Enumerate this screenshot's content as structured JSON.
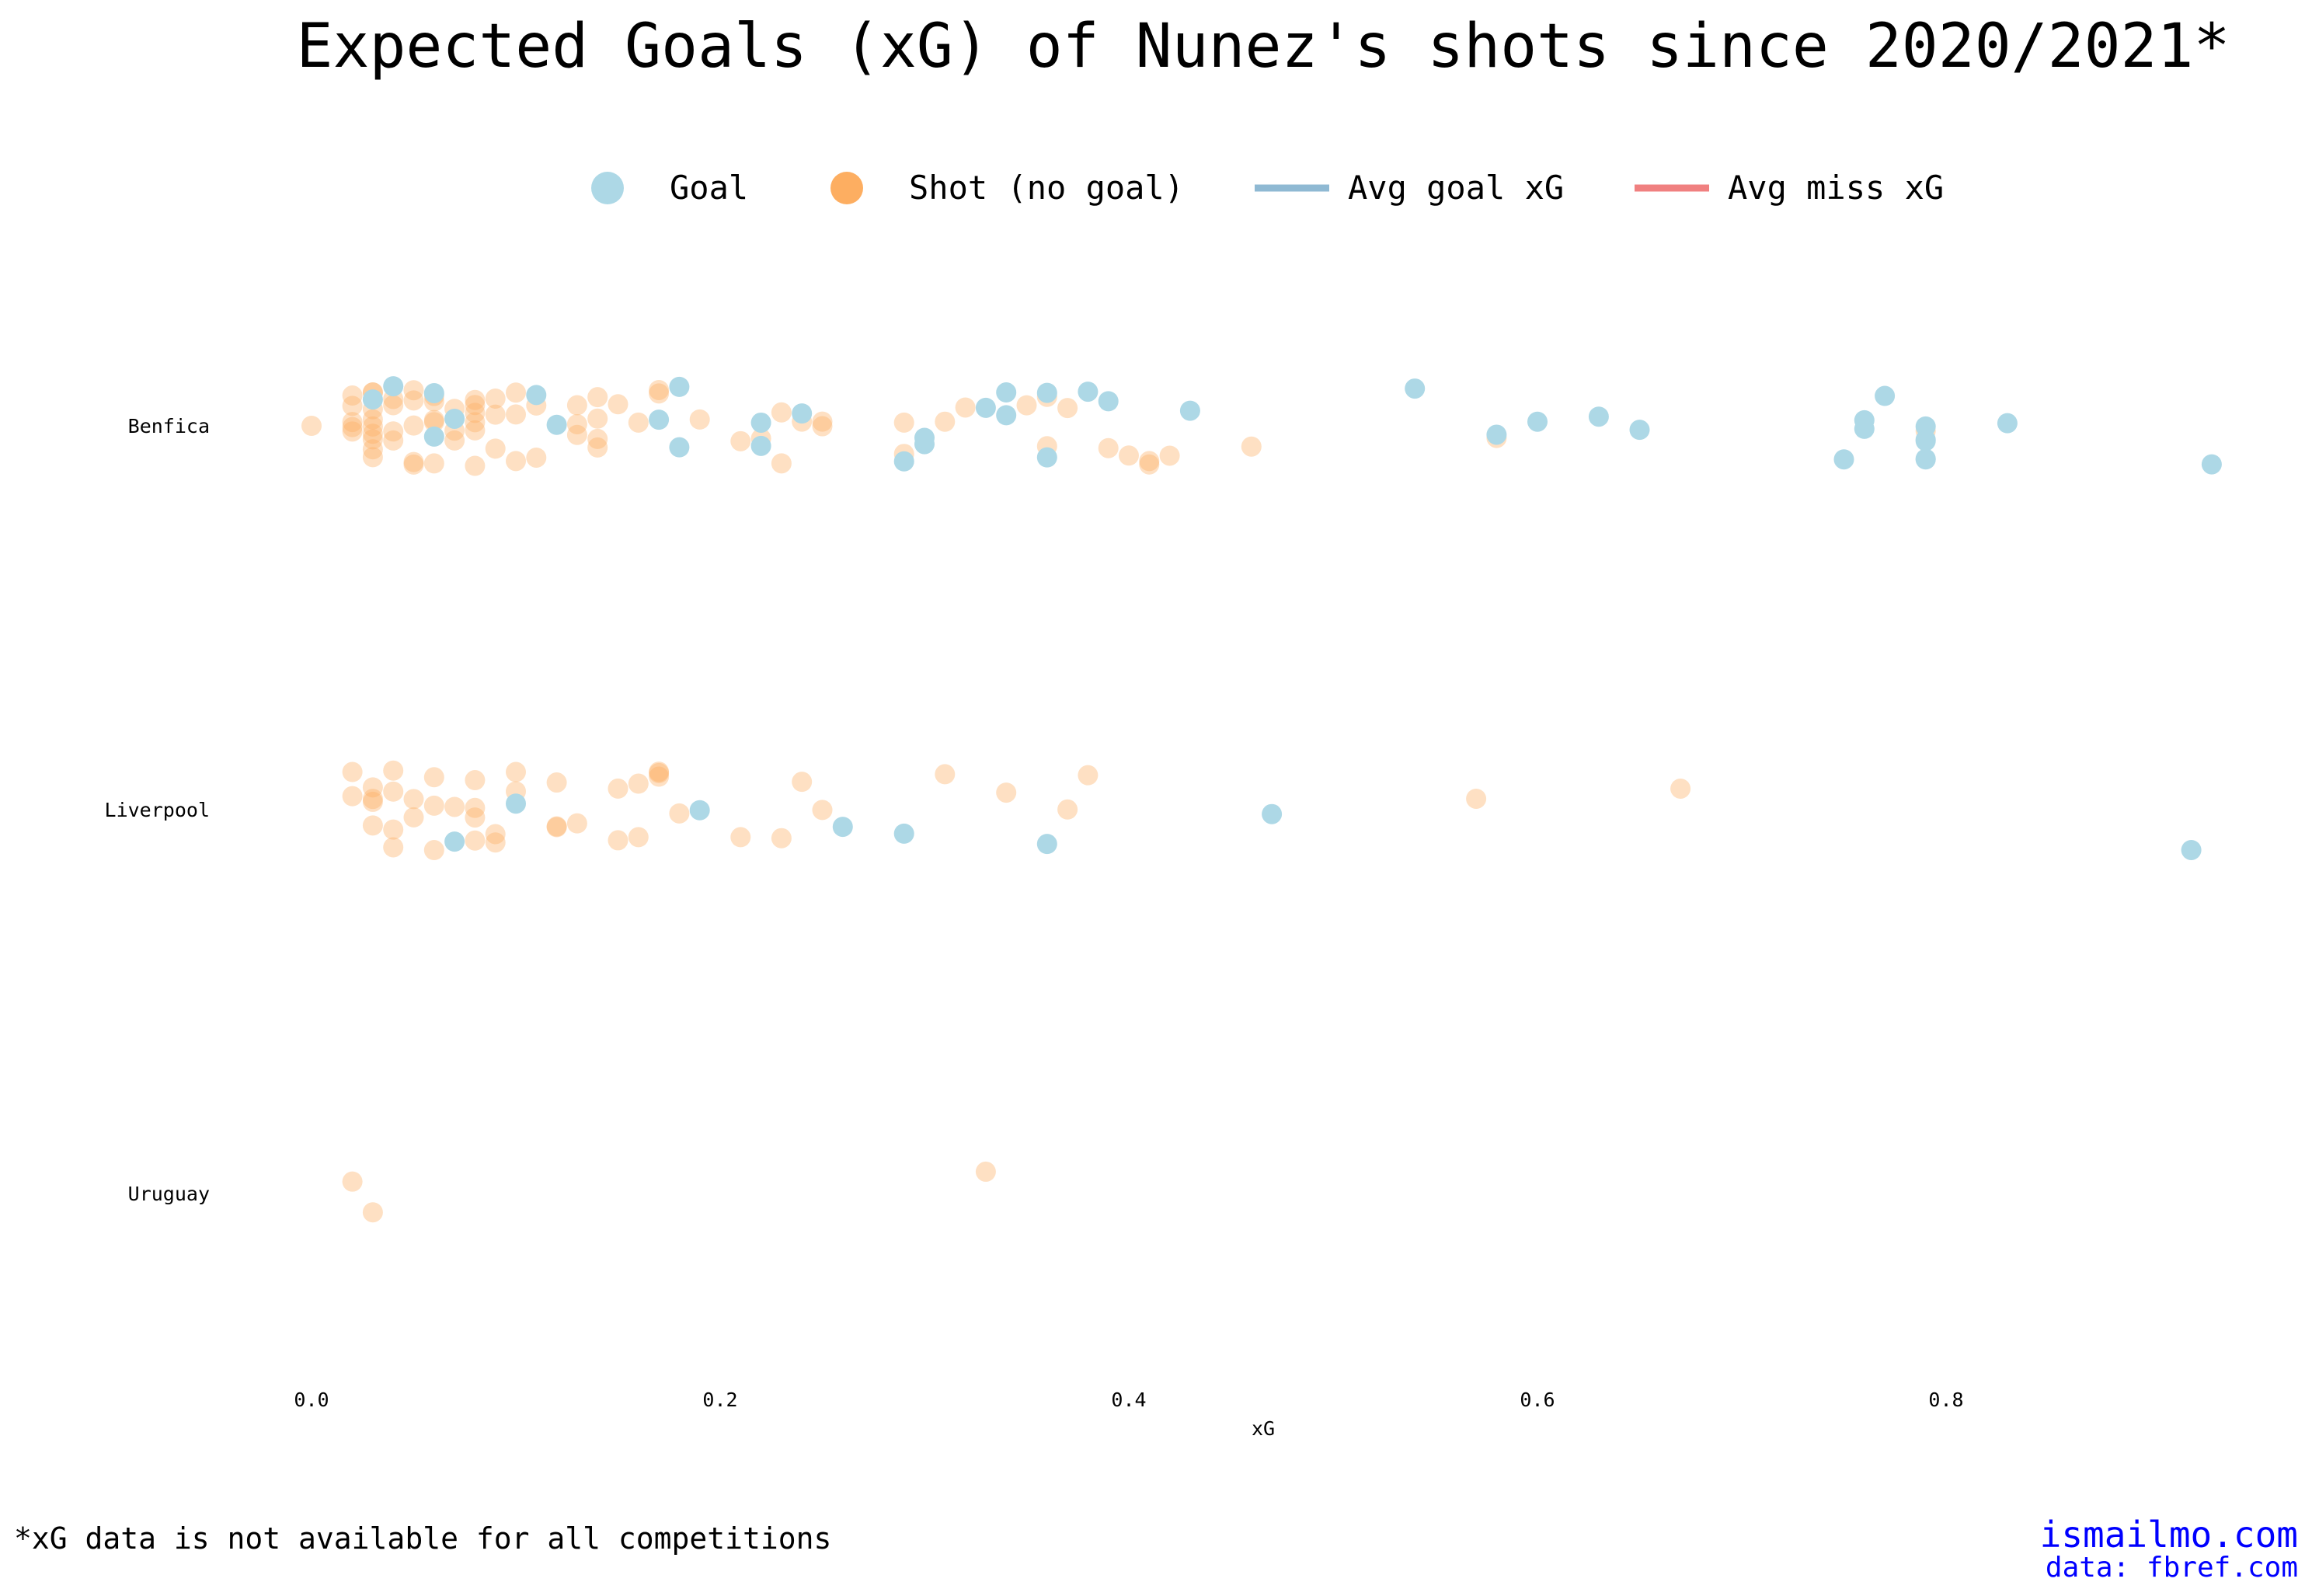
{
  "chart_data": {
    "type": "scatter",
    "title": "Expected Goals (xG) of Nunez's shots since 2020/2021*",
    "xlabel": "xG",
    "ylabel": "",
    "xlim": [
      0.0,
      0.93
    ],
    "xticks": [
      "0.0",
      "0.2",
      "0.4",
      "0.6",
      "0.8"
    ],
    "xtick_values": [
      0.0,
      0.2,
      0.4,
      0.6,
      0.8
    ],
    "grid": false,
    "legend_position": "top-center",
    "categories": [
      "Benfica",
      "Liverpool",
      "Uruguay"
    ],
    "legend": [
      {
        "label": "Goal",
        "kind": "marker",
        "color": "#add8e6"
      },
      {
        "label": "Shot (no goal)",
        "kind": "marker",
        "color": "#fdae61"
      },
      {
        "label": "Avg goal xG",
        "kind": "line",
        "color": "#8fb9d3"
      },
      {
        "label": "Avg miss xG",
        "kind": "line",
        "color": "#f08080"
      }
    ],
    "series": [
      {
        "name": "Goal",
        "color": "#add8e6",
        "points": [
          {
            "team": "Benfica",
            "xg": [
              0.03,
              0.04,
              0.06,
              0.06,
              0.07,
              0.11,
              0.12,
              0.17,
              0.18,
              0.18,
              0.22,
              0.22,
              0.24,
              0.29,
              0.3,
              0.3,
              0.33,
              0.34,
              0.34,
              0.36,
              0.36,
              0.38,
              0.39,
              0.43,
              0.54,
              0.58,
              0.6,
              0.63,
              0.65,
              0.75,
              0.76,
              0.76,
              0.77,
              0.79,
              0.79,
              0.79,
              0.79,
              0.79,
              0.83,
              0.93
            ]
          },
          {
            "team": "Liverpool",
            "xg": [
              0.07,
              0.1,
              0.19,
              0.26,
              0.29,
              0.36,
              0.47,
              0.92
            ]
          },
          {
            "team": "Uruguay",
            "xg": []
          }
        ]
      },
      {
        "name": "Shot (no goal)",
        "color": "#fdae61",
        "points": [
          {
            "team": "Benfica",
            "xg": [
              0.0,
              0.02,
              0.02,
              0.02,
              0.02,
              0.02,
              0.03,
              0.03,
              0.03,
              0.03,
              0.03,
              0.03,
              0.03,
              0.03,
              0.03,
              0.04,
              0.04,
              0.04,
              0.04,
              0.05,
              0.05,
              0.05,
              0.05,
              0.05,
              0.06,
              0.06,
              0.06,
              0.06,
              0.06,
              0.07,
              0.07,
              0.07,
              0.08,
              0.08,
              0.08,
              0.08,
              0.08,
              0.08,
              0.09,
              0.09,
              0.09,
              0.1,
              0.1,
              0.1,
              0.11,
              0.11,
              0.13,
              0.13,
              0.13,
              0.14,
              0.14,
              0.14,
              0.14,
              0.15,
              0.16,
              0.17,
              0.17,
              0.19,
              0.21,
              0.22,
              0.23,
              0.23,
              0.24,
              0.25,
              0.25,
              0.29,
              0.29,
              0.31,
              0.32,
              0.35,
              0.36,
              0.36,
              0.37,
              0.39,
              0.4,
              0.41,
              0.41,
              0.42,
              0.46,
              0.58,
              0.79
            ]
          },
          {
            "team": "Liverpool",
            "xg": [
              0.02,
              0.02,
              0.03,
              0.03,
              0.03,
              0.03,
              0.04,
              0.04,
              0.04,
              0.04,
              0.05,
              0.05,
              0.06,
              0.06,
              0.06,
              0.07,
              0.08,
              0.08,
              0.08,
              0.08,
              0.09,
              0.09,
              0.1,
              0.1,
              0.12,
              0.12,
              0.12,
              0.13,
              0.15,
              0.15,
              0.16,
              0.16,
              0.17,
              0.17,
              0.17,
              0.18,
              0.21,
              0.23,
              0.24,
              0.25,
              0.31,
              0.34,
              0.37,
              0.38,
              0.57,
              0.67
            ]
          },
          {
            "team": "Uruguay",
            "xg": [
              0.02,
              0.03,
              0.33
            ]
          }
        ]
      }
    ],
    "annotations": [
      {
        "text": "*xG data is not available for all competitions"
      },
      {
        "text": "ismailmo.com"
      },
      {
        "text": "data: fbref.com"
      }
    ]
  },
  "footer": {
    "note": "*xG data is not available for all competitions",
    "site": "ismailmo.com",
    "source": "data: fbref.com"
  }
}
